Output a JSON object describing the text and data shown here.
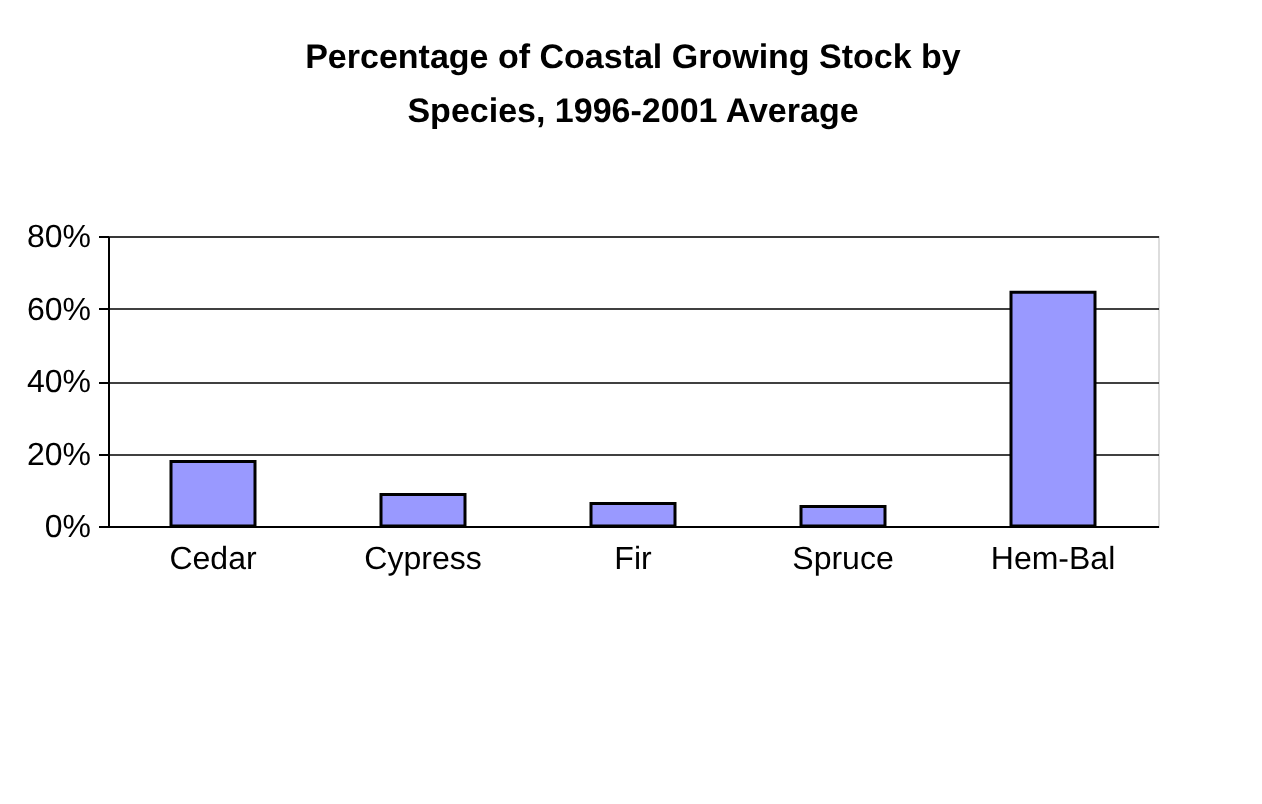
{
  "chart_data": {
    "type": "bar",
    "title": "Percentage of Coastal Growing Stock by Species, 1996-2001 Average",
    "categories": [
      "Cedar",
      "Cypress",
      "Fir",
      "Spruce",
      "Hem-Bal"
    ],
    "values": [
      17.8,
      8.7,
      6.2,
      5.4,
      64.5
    ],
    "color": "#9999ff",
    "ylim": [
      0,
      80
    ],
    "yticks": [
      {
        "value": 0,
        "label": "0%"
      },
      {
        "value": 20,
        "label": "20%"
      },
      {
        "value": 40,
        "label": "40%"
      },
      {
        "value": 60,
        "label": "60%"
      },
      {
        "value": 80,
        "label": "80%"
      }
    ],
    "grid": "y"
  }
}
